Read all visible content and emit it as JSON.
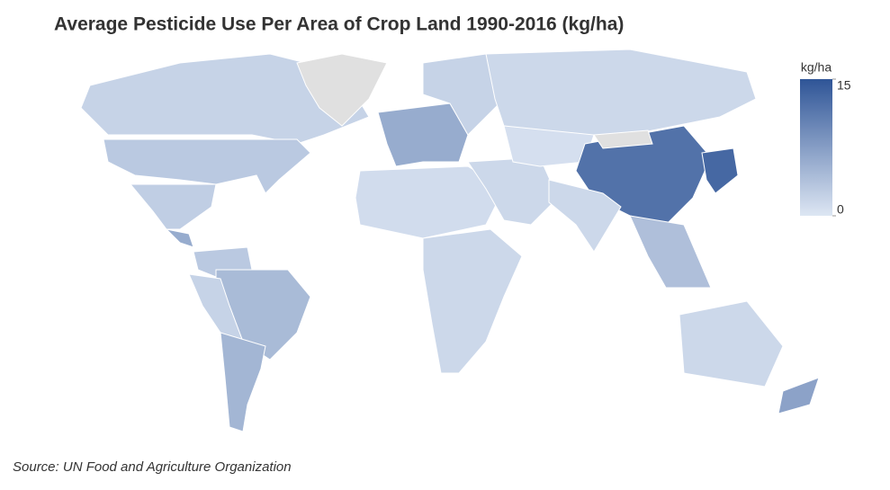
{
  "chart_data": {
    "type": "choropleth",
    "title": "Average Pesticide Use Per Area of Crop Land 1990-2016 (kg/ha)",
    "source": "Source: UN Food and Agriculture Organization",
    "legend_title": "kg/ha",
    "colorlim": [
      0,
      15
    ],
    "colorticks": [
      0,
      15
    ],
    "color_low": "#dde6f3",
    "color_high": "#2f5597",
    "no_data_color": "#e0e0e0",
    "values": [
      2,
      3,
      null,
      2.5,
      6,
      3,
      4.5,
      2,
      5,
      6,
      2,
      1.5,
      1,
      1.5,
      1.5,
      0.7,
      12,
      null,
      1.5,
      4,
      13,
      1.5,
      7
    ]
  }
}
